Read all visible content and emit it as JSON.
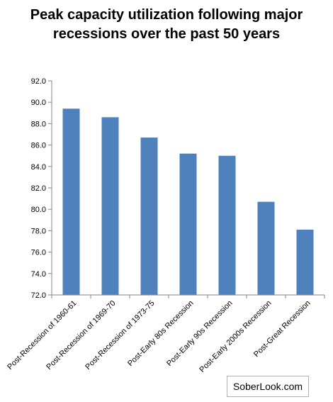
{
  "chart_data": {
    "type": "bar",
    "title": "Peak capacity utilization following major recessions over the past 50 years",
    "categories": [
      "Post-Recession of 1960-61",
      "Post-Recession of 1969-70",
      "Post-Recession of 1973-75",
      "Post-Early 80s Recession",
      "Post-Early 90s Recession",
      "Post-Early 2000s Recession",
      "Post-Great Recession"
    ],
    "values": [
      89.4,
      88.6,
      86.7,
      85.2,
      85.0,
      80.7,
      78.1
    ],
    "ylim": [
      72,
      92
    ],
    "yticks": [
      "72.0",
      "74.0",
      "76.0",
      "78.0",
      "80.0",
      "82.0",
      "84.0",
      "86.0",
      "88.0",
      "90.0",
      "92.0"
    ],
    "xlabel": "",
    "ylabel": "",
    "grid": false,
    "legend": "none",
    "bar_color": "#4f81bd"
  },
  "watermark": "SoberLook.com"
}
